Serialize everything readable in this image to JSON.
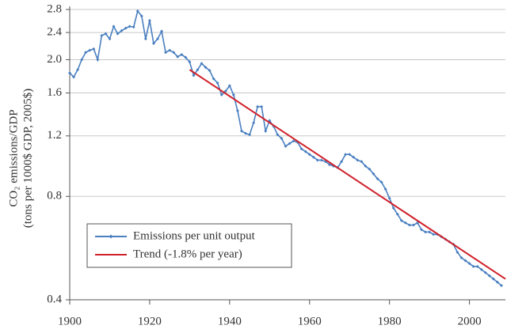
{
  "chart_data": {
    "type": "line",
    "y_label_1": "CO₂ emissions/GDP",
    "y_label_2": "(tons per 1000$ GDP, 2005$)",
    "x": [
      1900,
      1901,
      1902,
      1903,
      1904,
      1905,
      1906,
      1907,
      1908,
      1909,
      1910,
      1911,
      1912,
      1913,
      1914,
      1915,
      1916,
      1917,
      1918,
      1919,
      1920,
      1921,
      1922,
      1923,
      1924,
      1925,
      1926,
      1927,
      1928,
      1929,
      1930,
      1931,
      1932,
      1933,
      1934,
      1935,
      1936,
      1937,
      1938,
      1939,
      1940,
      1941,
      1942,
      1943,
      1944,
      1945,
      1946,
      1947,
      1948,
      1949,
      1950,
      1951,
      1952,
      1953,
      1954,
      1955,
      1956,
      1957,
      1958,
      1959,
      1960,
      1961,
      1962,
      1963,
      1964,
      1965,
      1966,
      1967,
      1968,
      1969,
      1970,
      1971,
      1972,
      1973,
      1974,
      1975,
      1976,
      1977,
      1978,
      1979,
      1980,
      1981,
      1982,
      1983,
      1984,
      1985,
      1986,
      1987,
      1988,
      1989,
      1990,
      1991,
      1992,
      1993,
      1994,
      1995,
      1996,
      1997,
      1998,
      1999,
      2000,
      2001,
      2002,
      2003,
      2004,
      2005,
      2006,
      2007,
      2008
    ],
    "series": [
      {
        "name": "Emissions per unit output",
        "color": "#4a7fc0",
        "marker": true,
        "values": [
          1.83,
          1.78,
          1.87,
          2.0,
          2.1,
          2.13,
          2.15,
          2.0,
          2.35,
          2.38,
          2.3,
          2.5,
          2.38,
          2.43,
          2.47,
          2.5,
          2.49,
          2.77,
          2.68,
          2.3,
          2.6,
          2.23,
          2.3,
          2.42,
          2.1,
          2.13,
          2.1,
          2.04,
          2.07,
          2.03,
          1.97,
          1.8,
          1.87,
          1.95,
          1.9,
          1.86,
          1.76,
          1.71,
          1.58,
          1.62,
          1.68,
          1.58,
          1.42,
          1.24,
          1.22,
          1.21,
          1.31,
          1.46,
          1.46,
          1.24,
          1.33,
          1.28,
          1.21,
          1.18,
          1.12,
          1.14,
          1.16,
          1.15,
          1.1,
          1.08,
          1.06,
          1.04,
          1.02,
          1.02,
          1.01,
          0.99,
          0.98,
          0.97,
          1.01,
          1.06,
          1.06,
          1.04,
          1.02,
          1.01,
          0.98,
          0.96,
          0.93,
          0.9,
          0.88,
          0.84,
          0.79,
          0.74,
          0.71,
          0.68,
          0.67,
          0.66,
          0.66,
          0.67,
          0.64,
          0.63,
          0.63,
          0.62,
          0.62,
          0.61,
          0.6,
          0.59,
          0.58,
          0.55,
          0.53,
          0.52,
          0.51,
          0.5,
          0.5,
          0.49,
          0.48,
          0.47,
          0.46,
          0.45,
          0.44
        ]
      },
      {
        "name": "Trend (-1.8% per year)",
        "color": "#d0202a",
        "marker": false,
        "x": [
          1930,
          2009
        ],
        "values": [
          1.87,
          0.46
        ]
      }
    ],
    "xlim": [
      1900,
      2009
    ],
    "xticks": [
      1900,
      1920,
      1940,
      1960,
      1980,
      2000
    ],
    "ylim": [
      0.4,
      2.8
    ],
    "ylog": true,
    "yticks": [
      0.4,
      0.8,
      1.2,
      1.6,
      {
        "value": 2,
        "label": "2.0"
      },
      2.4,
      2.8
    ],
    "grid": true
  }
}
